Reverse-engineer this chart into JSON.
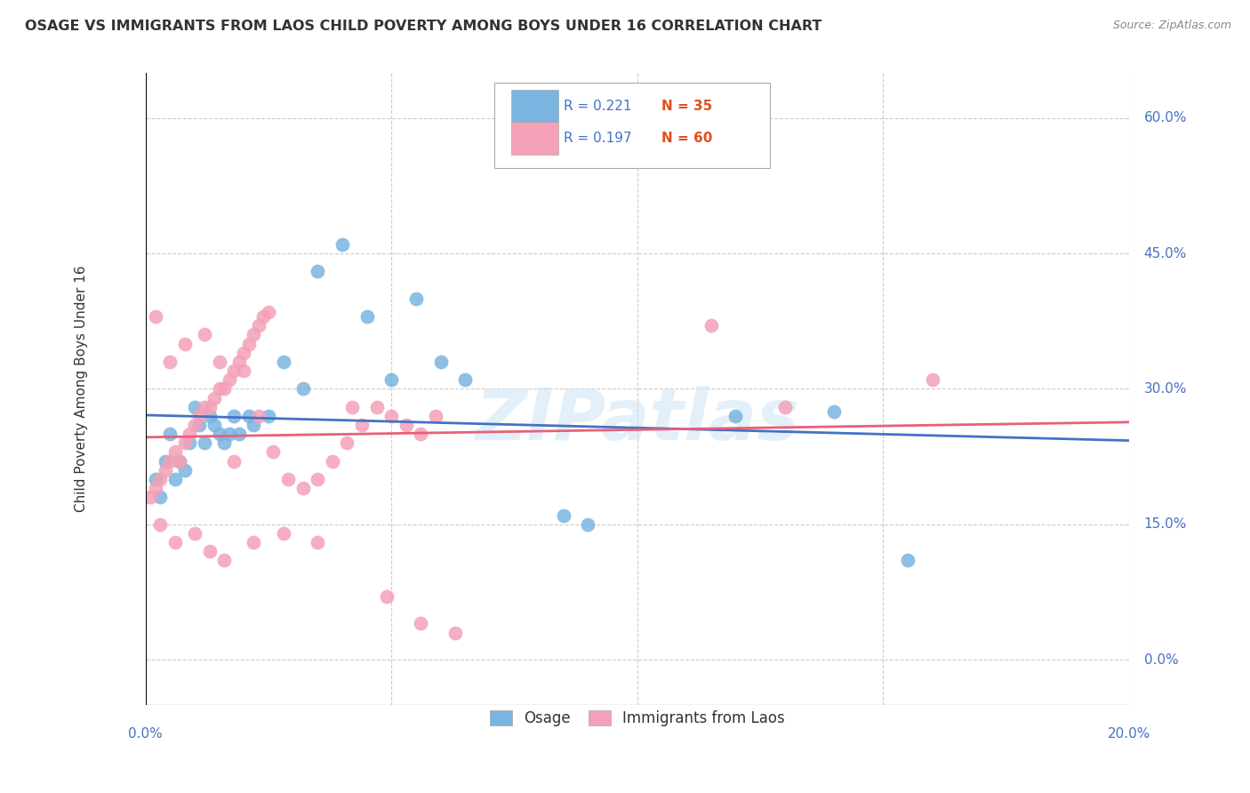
{
  "title": "OSAGE VS IMMIGRANTS FROM LAOS CHILD POVERTY AMONG BOYS UNDER 16 CORRELATION CHART",
  "source": "Source: ZipAtlas.com",
  "ylabel": "Child Poverty Among Boys Under 16",
  "ylabel_ticks": [
    "0.0%",
    "15.0%",
    "30.0%",
    "45.0%",
    "60.0%"
  ],
  "ylabel_values": [
    0,
    15,
    30,
    45,
    60
  ],
  "xtick_labels": [
    "0.0%",
    "20.0%"
  ],
  "xmin": 0,
  "xmax": 20,
  "ymin": -5,
  "ymax": 65,
  "legend_r_n": [
    {
      "label_r": "R = 0.221",
      "label_n": "N = 35",
      "color": "#aec6e8"
    },
    {
      "label_r": "R = 0.197",
      "label_n": "N = 60",
      "color": "#f4b8c8"
    }
  ],
  "legend_bottom": [
    "Osage",
    "Immigrants from Laos"
  ],
  "osage_color": "#7ab4e0",
  "laos_color": "#f4a0b8",
  "osage_line_color": "#4472c4",
  "laos_line_color": "#e8607a",
  "watermark": "ZIPatlas",
  "osage_points": [
    [
      0.2,
      20.0
    ],
    [
      0.3,
      18.0
    ],
    [
      0.4,
      22.0
    ],
    [
      0.5,
      25.0
    ],
    [
      0.6,
      20.0
    ],
    [
      0.7,
      22.0
    ],
    [
      0.8,
      21.0
    ],
    [
      0.9,
      24.0
    ],
    [
      1.0,
      28.0
    ],
    [
      1.1,
      26.0
    ],
    [
      1.2,
      24.0
    ],
    [
      1.3,
      27.0
    ],
    [
      1.4,
      26.0
    ],
    [
      1.5,
      25.0
    ],
    [
      1.6,
      24.0
    ],
    [
      1.7,
      25.0
    ],
    [
      1.8,
      27.0
    ],
    [
      1.9,
      25.0
    ],
    [
      2.1,
      27.0
    ],
    [
      2.2,
      26.0
    ],
    [
      2.5,
      27.0
    ],
    [
      2.8,
      33.0
    ],
    [
      3.2,
      30.0
    ],
    [
      3.5,
      43.0
    ],
    [
      4.0,
      46.0
    ],
    [
      4.5,
      38.0
    ],
    [
      5.0,
      31.0
    ],
    [
      5.5,
      40.0
    ],
    [
      6.0,
      33.0
    ],
    [
      6.5,
      31.0
    ],
    [
      8.5,
      16.0
    ],
    [
      9.0,
      15.0
    ],
    [
      12.0,
      27.0
    ],
    [
      14.0,
      27.5
    ],
    [
      15.5,
      11.0
    ]
  ],
  "laos_points": [
    [
      0.1,
      18.0
    ],
    [
      0.2,
      19.0
    ],
    [
      0.3,
      20.0
    ],
    [
      0.4,
      21.0
    ],
    [
      0.5,
      22.0
    ],
    [
      0.6,
      23.0
    ],
    [
      0.7,
      22.0
    ],
    [
      0.8,
      24.0
    ],
    [
      0.9,
      25.0
    ],
    [
      1.0,
      26.0
    ],
    [
      1.1,
      27.0
    ],
    [
      1.2,
      28.0
    ],
    [
      1.3,
      28.0
    ],
    [
      1.4,
      29.0
    ],
    [
      1.5,
      30.0
    ],
    [
      1.6,
      30.0
    ],
    [
      1.7,
      31.0
    ],
    [
      1.8,
      32.0
    ],
    [
      1.9,
      33.0
    ],
    [
      2.0,
      34.0
    ],
    [
      2.1,
      35.0
    ],
    [
      2.2,
      36.0
    ],
    [
      2.3,
      37.0
    ],
    [
      2.4,
      38.0
    ],
    [
      2.5,
      38.5
    ],
    [
      0.2,
      38.0
    ],
    [
      0.5,
      33.0
    ],
    [
      0.8,
      35.0
    ],
    [
      1.2,
      36.0
    ],
    [
      1.5,
      33.0
    ],
    [
      1.8,
      22.0
    ],
    [
      2.0,
      32.0
    ],
    [
      2.3,
      27.0
    ],
    [
      2.6,
      23.0
    ],
    [
      2.9,
      20.0
    ],
    [
      3.2,
      19.0
    ],
    [
      3.5,
      20.0
    ],
    [
      3.8,
      22.0
    ],
    [
      4.1,
      24.0
    ],
    [
      4.4,
      26.0
    ],
    [
      4.7,
      28.0
    ],
    [
      5.0,
      27.0
    ],
    [
      5.3,
      26.0
    ],
    [
      5.6,
      25.0
    ],
    [
      5.9,
      27.0
    ],
    [
      0.3,
      15.0
    ],
    [
      0.6,
      13.0
    ],
    [
      1.0,
      14.0
    ],
    [
      1.3,
      12.0
    ],
    [
      1.6,
      11.0
    ],
    [
      2.2,
      13.0
    ],
    [
      2.8,
      14.0
    ],
    [
      3.5,
      13.0
    ],
    [
      4.2,
      28.0
    ],
    [
      4.9,
      7.0
    ],
    [
      5.6,
      4.0
    ],
    [
      6.3,
      3.0
    ],
    [
      11.5,
      37.0
    ],
    [
      13.0,
      28.0
    ],
    [
      16.0,
      31.0
    ]
  ]
}
